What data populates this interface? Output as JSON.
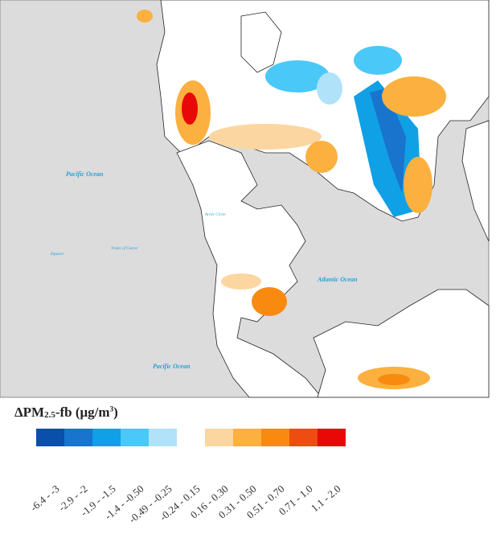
{
  "map": {
    "labels": {
      "pacific_north": "Pacific Ocean",
      "pacific_south": "Pacific Ocean",
      "atlantic": "Atlantic Ocean",
      "tropic": "Tropic of Cancer",
      "equator": "Equator",
      "circle": "Arctic Circle"
    },
    "colors": {
      "ocean": "#dcdcdc",
      "land": "#ffffff",
      "border": "#222222"
    }
  },
  "legend": {
    "title_prefix": "ΔPM",
    "title_sub": "2.5",
    "title_mid": "-fb (μg/m",
    "title_sup": "3",
    "title_suffix": ")",
    "bins": [
      {
        "label": "-6.4 - -3",
        "color": "#0a4faa"
      },
      {
        "label": "-2.9 - -2",
        "color": "#1874cd"
      },
      {
        "label": "-1.9 - -1.5",
        "color": "#10a0e6"
      },
      {
        "label": "-1.4 - -0.50",
        "color": "#4ac8f8"
      },
      {
        "label": "-0.49 - -0.25",
        "color": "#b0e2fa"
      },
      {
        "label": "-0.24 - 0.15",
        "color": "#ffffff"
      },
      {
        "label": "0.16 - 0.30",
        "color": "#fcd6a0"
      },
      {
        "label": "0.31 - 0.50",
        "color": "#fbb040"
      },
      {
        "label": "0.51 - 0.70",
        "color": "#f98a10"
      },
      {
        "label": "0.71 - 1.0",
        "color": "#ee4c10"
      },
      {
        "label": "1.1 - 2.0",
        "color": "#e80808"
      }
    ]
  }
}
